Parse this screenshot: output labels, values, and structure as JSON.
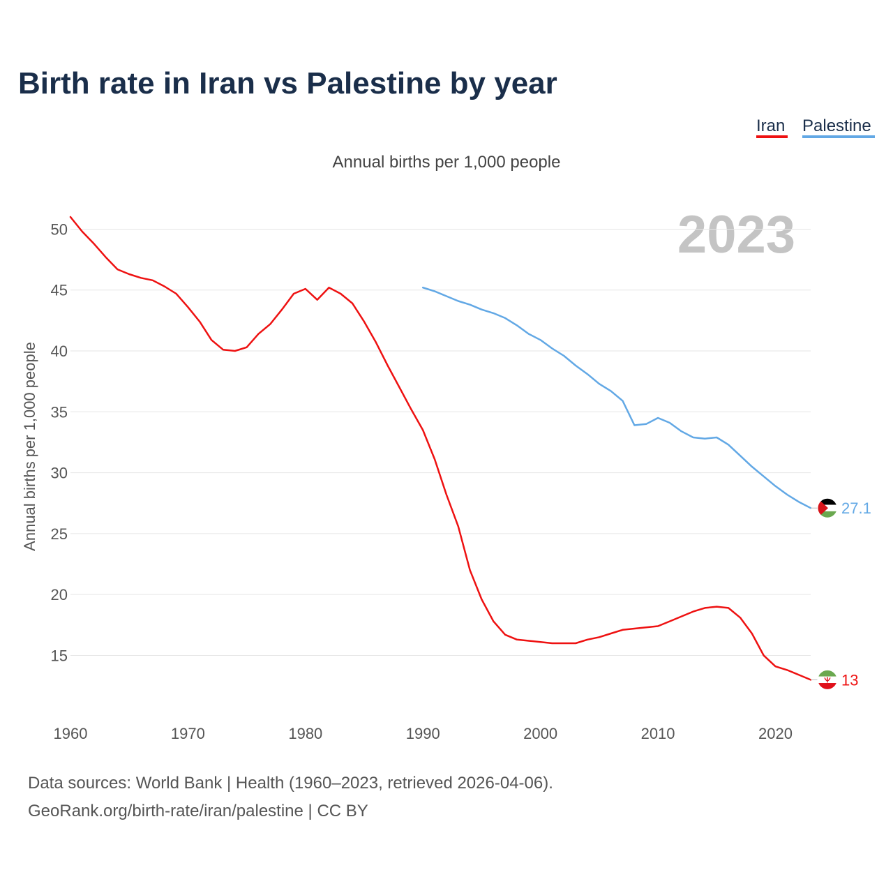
{
  "chart_data": {
    "type": "line",
    "title": "Birth rate in Iran vs Palestine by year",
    "subtitle": "Annual births per 1,000 people",
    "ylabel": "Annual births per 1,000 people",
    "xlabel": "",
    "watermark_year": "2023",
    "xlim": [
      1960,
      2023
    ],
    "ylim": [
      10.5,
      51
    ],
    "x_ticks": [
      1960,
      1970,
      1980,
      1990,
      2000,
      2010,
      2020
    ],
    "y_ticks": [
      15,
      20,
      25,
      30,
      35,
      40,
      45,
      50
    ],
    "grid": true,
    "legend_position": "top-right",
    "series": [
      {
        "name": "Iran",
        "color": "#ee1111",
        "end_label": "13",
        "flag": "iran-flag-icon",
        "x": [
          1960,
          1961,
          1962,
          1963,
          1964,
          1965,
          1966,
          1967,
          1968,
          1969,
          1970,
          1971,
          1972,
          1973,
          1974,
          1975,
          1976,
          1977,
          1978,
          1979,
          1980,
          1981,
          1982,
          1983,
          1984,
          1985,
          1986,
          1987,
          1988,
          1989,
          1990,
          1991,
          1992,
          1993,
          1994,
          1995,
          1996,
          1997,
          1998,
          1999,
          2000,
          2001,
          2002,
          2003,
          2004,
          2005,
          2006,
          2007,
          2008,
          2009,
          2010,
          2011,
          2012,
          2013,
          2014,
          2015,
          2016,
          2017,
          2018,
          2019,
          2020,
          2021,
          2022,
          2023
        ],
        "y": [
          51.0,
          49.8,
          48.8,
          47.7,
          46.7,
          46.3,
          46.0,
          45.8,
          45.3,
          44.7,
          43.6,
          42.4,
          40.9,
          40.1,
          40.0,
          40.3,
          41.4,
          42.2,
          43.4,
          44.7,
          45.1,
          44.2,
          45.2,
          44.7,
          43.9,
          42.4,
          40.7,
          38.8,
          37.0,
          35.2,
          33.5,
          31.1,
          28.2,
          25.6,
          22.0,
          19.6,
          17.8,
          16.7,
          16.3,
          16.2,
          16.1,
          16.0,
          16.0,
          16.0,
          16.3,
          16.5,
          16.8,
          17.1,
          17.2,
          17.3,
          17.4,
          17.8,
          18.2,
          18.6,
          18.9,
          19.0,
          18.9,
          18.1,
          16.8,
          15.0,
          14.1,
          13.8,
          13.4,
          13.0
        ]
      },
      {
        "name": "Palestine",
        "color": "#62a8e5",
        "end_label": "27.1",
        "flag": "palestine-flag-icon",
        "x": [
          1990,
          1991,
          1992,
          1993,
          1994,
          1995,
          1996,
          1997,
          1998,
          1999,
          2000,
          2001,
          2002,
          2003,
          2004,
          2005,
          2006,
          2007,
          2008,
          2009,
          2010,
          2011,
          2012,
          2013,
          2014,
          2015,
          2016,
          2017,
          2018,
          2019,
          2020,
          2021,
          2022,
          2023
        ],
        "y": [
          45.2,
          44.9,
          44.5,
          44.1,
          43.8,
          43.4,
          43.1,
          42.7,
          42.1,
          41.4,
          40.9,
          40.2,
          39.6,
          38.8,
          38.1,
          37.3,
          36.7,
          35.9,
          33.9,
          34.0,
          34.5,
          34.1,
          33.4,
          32.9,
          32.8,
          32.9,
          32.3,
          31.4,
          30.5,
          29.7,
          28.9,
          28.2,
          27.6,
          27.1
        ]
      }
    ]
  },
  "source_line_1": "Data sources: World Bank | Health (1960–2023, retrieved 2026-04-06).",
  "source_line_2": "GeoRank.org/birth-rate/iran/palestine | CC BY"
}
